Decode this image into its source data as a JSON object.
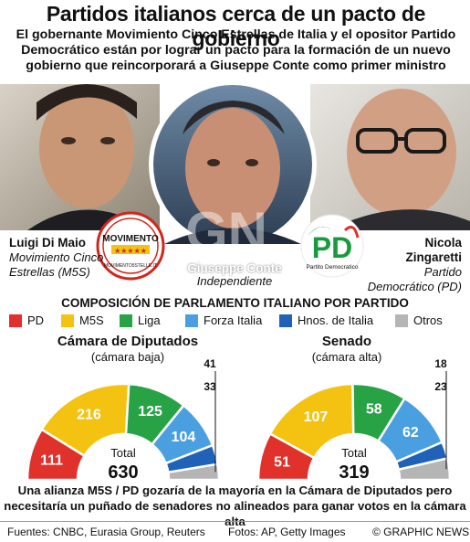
{
  "title": "Partidos italianos cerca de un pacto de gobierno",
  "subtitle": "El gobernante Movimiento Cinco Estrellas de Italia y el opositor Partido Democrático están por lograr un pacto para la formación de un nuevo gobierno que reincorporará a Giuseppe Conte como primer ministro",
  "people": {
    "left": {
      "name": "Luigi Di Maio",
      "party": "Movimiento Cinco Estrellas (M5S)"
    },
    "center": {
      "name": "Giuseppe Conte",
      "party": "Independiente"
    },
    "right": {
      "name": "Nicola Zingaretti",
      "party": "Partido Democrático (PD)"
    }
  },
  "logos": {
    "m5s_text": "MOVIMENTO",
    "m5s_url": "MOVIMENTO5STELLE.IT",
    "pd_text": "PD",
    "pd_caption": "Partito Democratico"
  },
  "watermark": {
    "big": "GN",
    "text": "GRAPHIC NEWS"
  },
  "section_title": "COMPOSICIÓN DE PARLAMENTO ITALIANO POR PARTIDO",
  "legend": [
    {
      "label": "PD",
      "color": "#e0312b"
    },
    {
      "label": "M5S",
      "color": "#f4c312"
    },
    {
      "label": "Liga",
      "color": "#27a346"
    },
    {
      "label": "Forza Italia",
      "color": "#4a9fe0"
    },
    {
      "label": "Hnos. de Italia",
      "color": "#1f62b8"
    },
    {
      "label": "Otros",
      "color": "#b5b5b5"
    }
  ],
  "chart_data": [
    {
      "type": "pie",
      "title": "Cámara de Diputados",
      "subtitle": "(cámara baja)",
      "total_label": "Total",
      "total": 630,
      "categories": [
        "PD",
        "M5S",
        "Liga",
        "Forza Italia",
        "Hnos. de Italia",
        "Otros"
      ],
      "values": [
        111,
        216,
        125,
        104,
        41,
        33
      ]
    },
    {
      "type": "pie",
      "title": "Senado",
      "subtitle": "(cámara alta)",
      "total_label": "Total",
      "total": 319,
      "categories": [
        "PD",
        "M5S",
        "Liga",
        "Forza Italia",
        "Hnos. de Italia",
        "Otros"
      ],
      "values": [
        51,
        107,
        58,
        62,
        18,
        23
      ]
    }
  ],
  "note": "Una alianza M5S / PD gozaría de la mayoría en la Cámara de Diputados pero necesitaría un puñado de senadores no alineados para ganar votos en la cámara alta",
  "footer": {
    "sources": "Fuentes: CNBC, Eurasia Group, Reuters",
    "photos": "Fotos: AP, Getty Images",
    "credit": "© GRAPHIC NEWS"
  }
}
